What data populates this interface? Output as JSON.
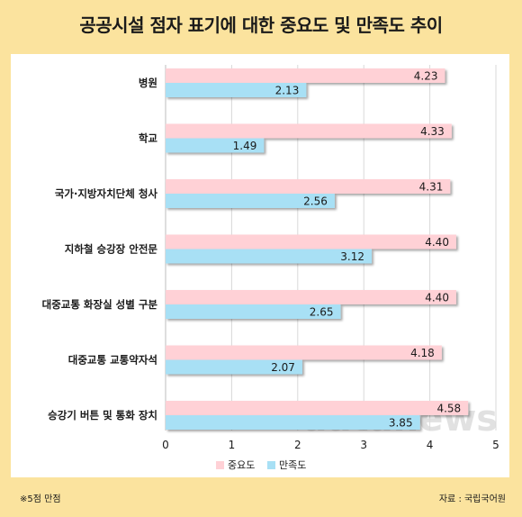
{
  "title": "공공시설 점자 표기에 대한 중요도 및 만족도 추이",
  "note": "※5점 만점",
  "source": "자료 : 국립국어원",
  "watermark": "datanews",
  "colors": {
    "background": "#fbe39e",
    "importance": "#ffd1d6",
    "satisfaction": "#a8e0f5"
  },
  "chart_data": {
    "type": "bar",
    "orientation": "horizontal",
    "categories": [
      "병원",
      "학교",
      "국가·지방자치단체 청사",
      "지하철 승강장 안전문",
      "대중교통 화장실 성별 구분",
      "대중교통 교통약자석",
      "승강기 버튼 및 통화 장치"
    ],
    "series": [
      {
        "name": "중요도",
        "values": [
          4.23,
          4.33,
          4.31,
          4.4,
          4.4,
          4.18,
          4.58
        ],
        "labels": [
          "4.23",
          "4.33",
          "4.31",
          "4.40",
          "4.40",
          "4.18",
          "4.58"
        ]
      },
      {
        "name": "만족도",
        "values": [
          2.13,
          1.49,
          2.56,
          3.12,
          2.65,
          2.07,
          3.85
        ],
        "labels": [
          "2.13",
          "1.49",
          "2.56",
          "3.12",
          "2.65",
          "2.07",
          "3.85"
        ]
      }
    ],
    "xlim": [
      0,
      5
    ],
    "xticks": [
      "0",
      "1",
      "2",
      "3",
      "4",
      "5"
    ],
    "grid": true,
    "legend": "bottom"
  }
}
